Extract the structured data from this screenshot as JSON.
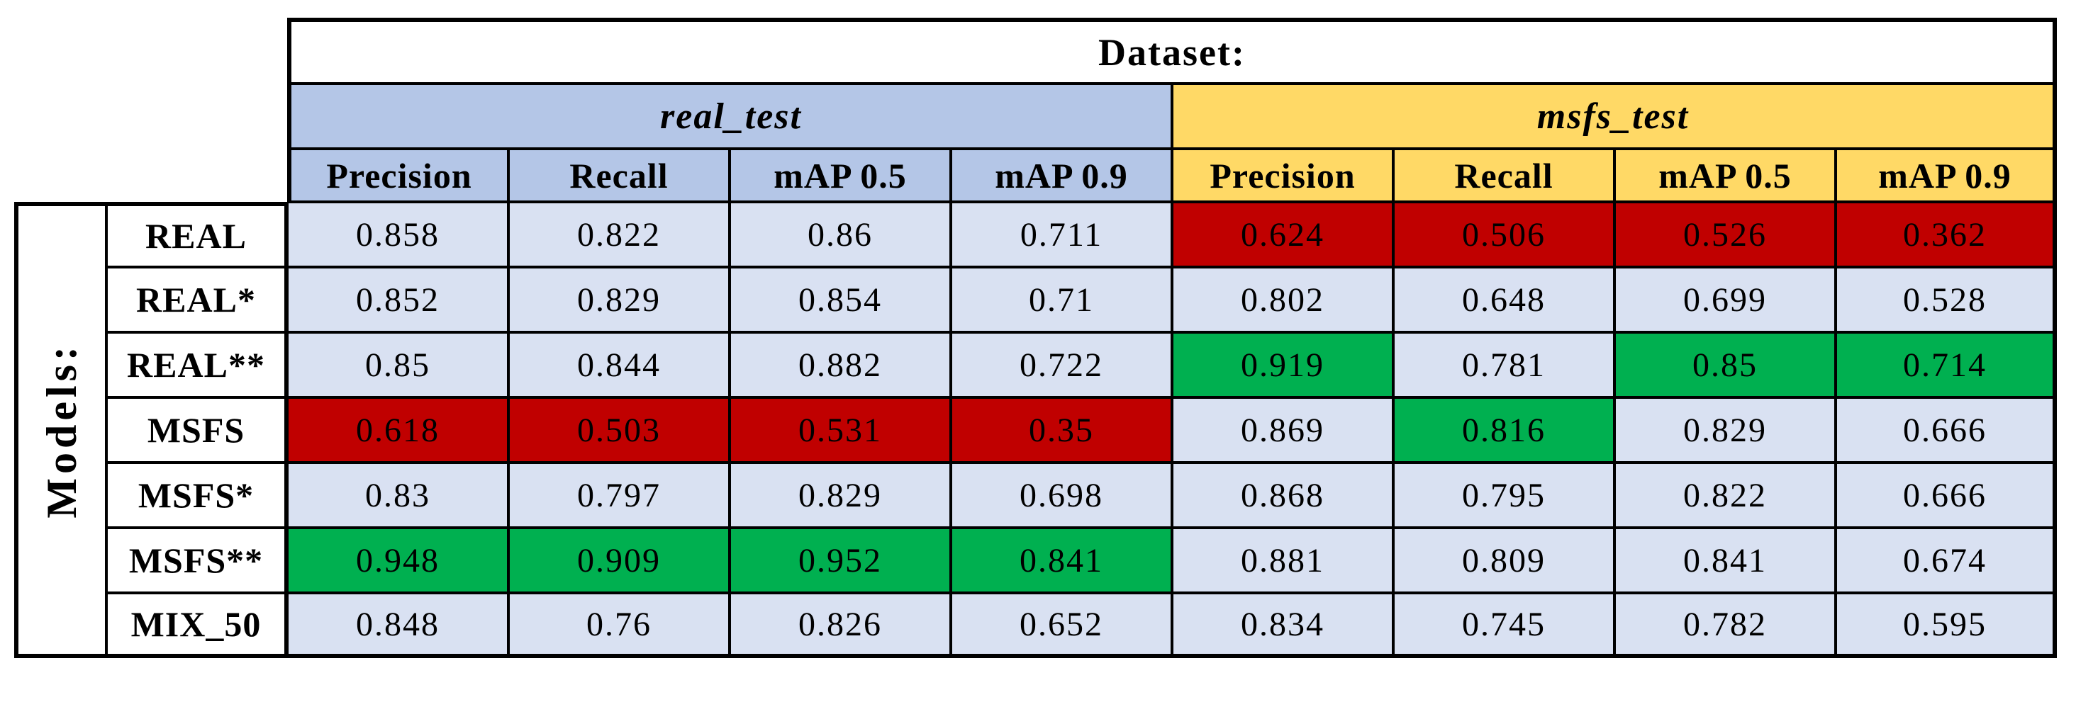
{
  "table": {
    "dataset_header": "Dataset:",
    "models_axis_label": "Models:",
    "groups": [
      {
        "label": "real_test"
      },
      {
        "label": "msfs_test"
      }
    ],
    "columns": [
      "Precision",
      "Recall",
      "mAP 0.5",
      "mAP 0.9",
      "Precision",
      "Recall",
      "mAP 0.5",
      "mAP 0.9"
    ],
    "rows": [
      {
        "model": "REAL",
        "cells": [
          {
            "v": "0.858",
            "hl": "none"
          },
          {
            "v": "0.822",
            "hl": "none"
          },
          {
            "v": "0.86",
            "hl": "none"
          },
          {
            "v": "0.711",
            "hl": "none"
          },
          {
            "v": "0.624",
            "hl": "red"
          },
          {
            "v": "0.506",
            "hl": "red"
          },
          {
            "v": "0.526",
            "hl": "red"
          },
          {
            "v": "0.362",
            "hl": "red"
          }
        ]
      },
      {
        "model": "REAL*",
        "cells": [
          {
            "v": "0.852",
            "hl": "none"
          },
          {
            "v": "0.829",
            "hl": "none"
          },
          {
            "v": "0.854",
            "hl": "none"
          },
          {
            "v": "0.71",
            "hl": "none"
          },
          {
            "v": "0.802",
            "hl": "none"
          },
          {
            "v": "0.648",
            "hl": "none"
          },
          {
            "v": "0.699",
            "hl": "none"
          },
          {
            "v": "0.528",
            "hl": "none"
          }
        ]
      },
      {
        "model": "REAL**",
        "cells": [
          {
            "v": "0.85",
            "hl": "none"
          },
          {
            "v": "0.844",
            "hl": "none"
          },
          {
            "v": "0.882",
            "hl": "none"
          },
          {
            "v": "0.722",
            "hl": "none"
          },
          {
            "v": "0.919",
            "hl": "green"
          },
          {
            "v": "0.781",
            "hl": "none"
          },
          {
            "v": "0.85",
            "hl": "green"
          },
          {
            "v": "0.714",
            "hl": "green"
          }
        ]
      },
      {
        "model": "MSFS",
        "cells": [
          {
            "v": "0.618",
            "hl": "red"
          },
          {
            "v": "0.503",
            "hl": "red"
          },
          {
            "v": "0.531",
            "hl": "red"
          },
          {
            "v": "0.35",
            "hl": "red"
          },
          {
            "v": "0.869",
            "hl": "none"
          },
          {
            "v": "0.816",
            "hl": "green"
          },
          {
            "v": "0.829",
            "hl": "none"
          },
          {
            "v": "0.666",
            "hl": "none"
          }
        ]
      },
      {
        "model": "MSFS*",
        "cells": [
          {
            "v": "0.83",
            "hl": "none"
          },
          {
            "v": "0.797",
            "hl": "none"
          },
          {
            "v": "0.829",
            "hl": "none"
          },
          {
            "v": "0.698",
            "hl": "none"
          },
          {
            "v": "0.868",
            "hl": "none"
          },
          {
            "v": "0.795",
            "hl": "none"
          },
          {
            "v": "0.822",
            "hl": "none"
          },
          {
            "v": "0.666",
            "hl": "none"
          }
        ]
      },
      {
        "model": "MSFS**",
        "cells": [
          {
            "v": "0.948",
            "hl": "green"
          },
          {
            "v": "0.909",
            "hl": "green"
          },
          {
            "v": "0.952",
            "hl": "green"
          },
          {
            "v": "0.841",
            "hl": "green"
          },
          {
            "v": "0.881",
            "hl": "none"
          },
          {
            "v": "0.809",
            "hl": "none"
          },
          {
            "v": "0.841",
            "hl": "none"
          },
          {
            "v": "0.674",
            "hl": "none"
          }
        ]
      },
      {
        "model": "MIX_50",
        "cells": [
          {
            "v": "0.848",
            "hl": "none"
          },
          {
            "v": "0.76",
            "hl": "none"
          },
          {
            "v": "0.826",
            "hl": "none"
          },
          {
            "v": "0.652",
            "hl": "none"
          },
          {
            "v": "0.834",
            "hl": "none"
          },
          {
            "v": "0.745",
            "hl": "none"
          },
          {
            "v": "0.782",
            "hl": "none"
          },
          {
            "v": "0.595",
            "hl": "none"
          }
        ]
      }
    ],
    "colors": {
      "header_blue": "#B4C6E7",
      "header_yellow": "#FFD966",
      "cell_blue": "#D9E1F2",
      "highlight_red": "#C00000",
      "highlight_green": "#00B050"
    }
  }
}
